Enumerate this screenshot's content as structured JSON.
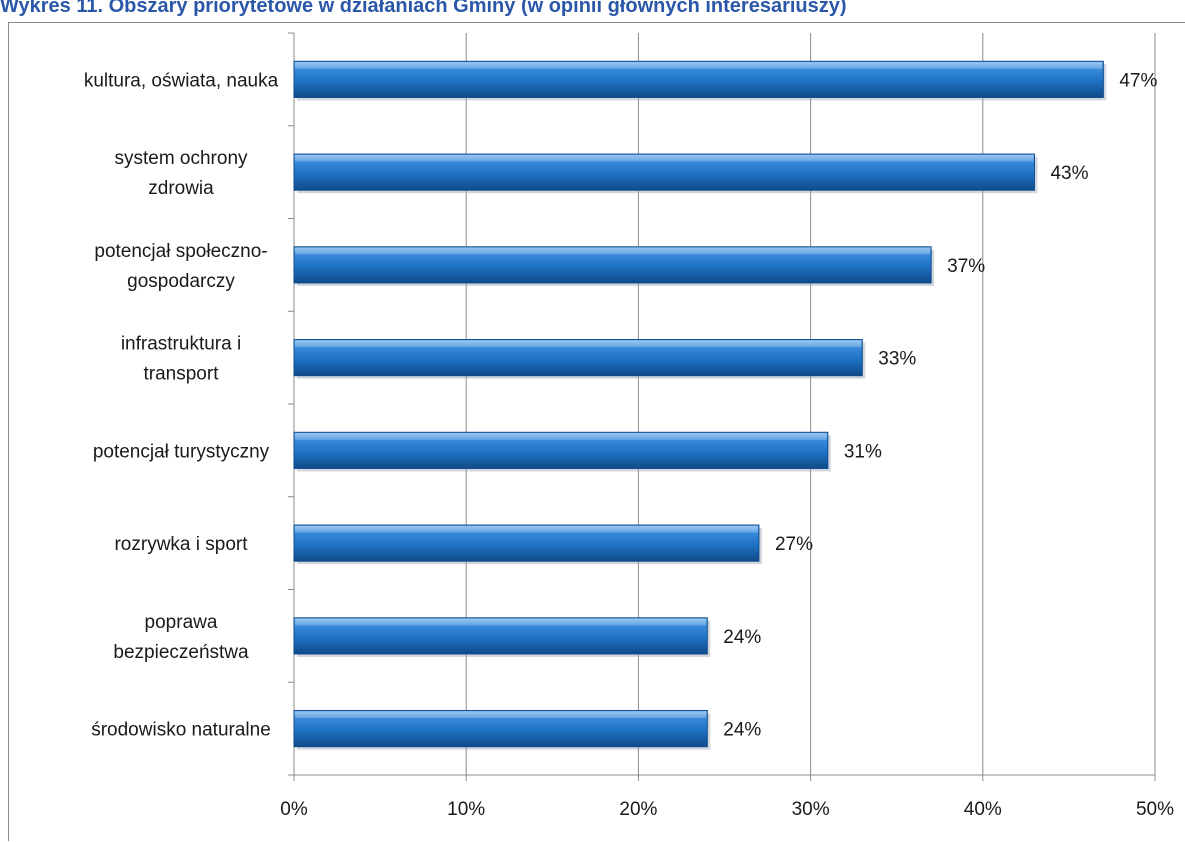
{
  "chart_data": {
    "type": "bar",
    "orientation": "horizontal",
    "title": "Wykres 11. Obszary priorytetowe w działaniach Gminy (w opinii głównych interesariuszy)",
    "categories": [
      "kultura, oświata, nauka",
      "system ochrony zdrowia",
      "potencjał społeczno-gospodarczy",
      "infrastruktura i transport",
      "potencjał turystyczny",
      "rozrywka i sport",
      "poprawa bezpieczeństwa",
      "środowisko naturalne"
    ],
    "category_lines": [
      [
        "kultura, oświata, nauka"
      ],
      [
        "system ochrony",
        "zdrowia"
      ],
      [
        "potencjał społeczno-",
        "gospodarczy"
      ],
      [
        "infrastruktura i",
        "transport"
      ],
      [
        "potencjał turystyczny"
      ],
      [
        "rozrywka i sport"
      ],
      [
        "poprawa",
        "bezpieczeństwa"
      ],
      [
        "środowisko naturalne"
      ]
    ],
    "values": [
      47,
      43,
      37,
      33,
      31,
      27,
      24,
      24
    ],
    "data_labels": [
      "47%",
      "43%",
      "37%",
      "33%",
      "31%",
      "27%",
      "24%",
      "24%"
    ],
    "xlim": [
      0,
      50
    ],
    "x_ticks": [
      0,
      10,
      20,
      30,
      40,
      50
    ],
    "x_tick_labels": [
      "0%",
      "10%",
      "20%",
      "30%",
      "40%",
      "50%"
    ],
    "xlabel": "",
    "ylabel": "",
    "grid": "vertical",
    "legend": "none",
    "bar_color": "#1f72c4",
    "bar_highlight": "#5fa6e8",
    "bar_shadow": "#0f4a8a",
    "gridline_color": "#8c8c8c"
  }
}
